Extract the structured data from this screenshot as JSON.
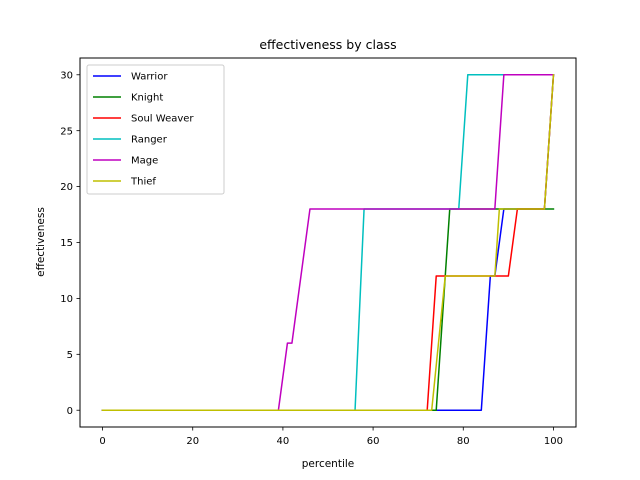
{
  "chart_data": {
    "type": "line",
    "title": "effectiveness by class",
    "xlabel": "percentile",
    "ylabel": "effectiveness",
    "xlim": [
      -5,
      105
    ],
    "ylim": [
      -1.5,
      31.5
    ],
    "xticks": [
      0,
      20,
      40,
      60,
      80,
      100
    ],
    "yticks": [
      0,
      5,
      10,
      15,
      20,
      25,
      30
    ],
    "grid": false,
    "legend_position": "top-left",
    "series": [
      {
        "name": "Warrior",
        "color": "#0000ff",
        "points": [
          [
            0,
            0
          ],
          [
            84,
            0
          ],
          [
            86,
            12
          ],
          [
            87,
            12
          ],
          [
            89,
            18
          ],
          [
            98,
            18
          ],
          [
            100,
            30
          ]
        ]
      },
      {
        "name": "Knight",
        "color": "#008000",
        "points": [
          [
            0,
            0
          ],
          [
            74,
            0
          ],
          [
            77,
            18
          ],
          [
            100,
            18
          ]
        ]
      },
      {
        "name": "Soul Weaver",
        "color": "#ff0000",
        "points": [
          [
            0,
            0
          ],
          [
            72,
            0
          ],
          [
            74,
            12
          ],
          [
            87,
            12
          ],
          [
            90,
            12
          ],
          [
            92,
            18
          ],
          [
            98,
            18
          ],
          [
            100,
            30
          ]
        ]
      },
      {
        "name": "Ranger",
        "color": "#00bfbf",
        "points": [
          [
            0,
            0
          ],
          [
            56,
            0
          ],
          [
            58,
            18
          ],
          [
            79,
            18
          ],
          [
            81,
            30
          ],
          [
            100,
            30
          ]
        ]
      },
      {
        "name": "Mage",
        "color": "#bf00bf",
        "points": [
          [
            0,
            0
          ],
          [
            39,
            0
          ],
          [
            41,
            6
          ],
          [
            42,
            6
          ],
          [
            46,
            18
          ],
          [
            87,
            18
          ],
          [
            89,
            30
          ],
          [
            100,
            30
          ]
        ]
      },
      {
        "name": "Thief",
        "color": "#bfbf00",
        "points": [
          [
            0,
            0
          ],
          [
            73,
            0
          ],
          [
            76,
            12
          ],
          [
            87,
            12
          ],
          [
            88,
            18
          ],
          [
            98,
            18
          ],
          [
            100,
            30
          ]
        ]
      }
    ]
  }
}
